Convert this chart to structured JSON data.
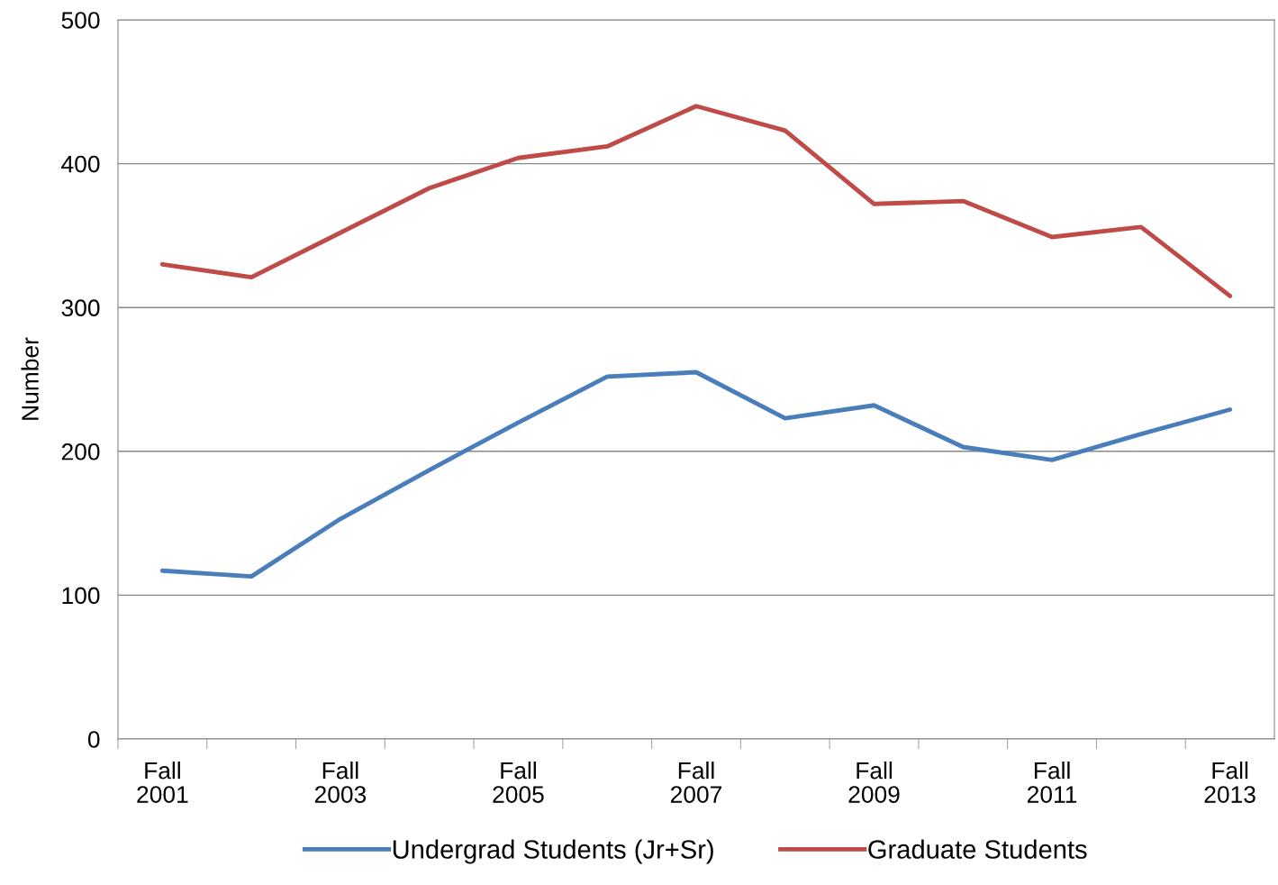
{
  "chart_data": {
    "type": "line",
    "ylabel": "Number",
    "categories": [
      "Fall\n2001",
      null,
      "Fall\n2003",
      null,
      "Fall\n2005",
      null,
      "Fall\n2007",
      null,
      "Fall\n2009",
      null,
      "Fall\n2011",
      null,
      "Fall\n2013"
    ],
    "series": [
      {
        "name": "Undergrad Students (Jr+Sr)",
        "color": "#4a7ebb",
        "values": [
          117,
          113,
          153,
          187,
          220,
          252,
          255,
          223,
          232,
          203,
          194,
          212,
          229
        ]
      },
      {
        "name": "Graduate Students",
        "color": "#be4b48",
        "values": [
          330,
          321,
          352,
          383,
          404,
          412,
          440,
          423,
          372,
          374,
          349,
          356,
          308
        ]
      }
    ],
    "ylim": [
      0,
      500
    ],
    "yticks": [
      0,
      100,
      200,
      300,
      400,
      500
    ],
    "grid": "y",
    "legend": "bottom",
    "marker": "none",
    "line_style": "solid"
  }
}
